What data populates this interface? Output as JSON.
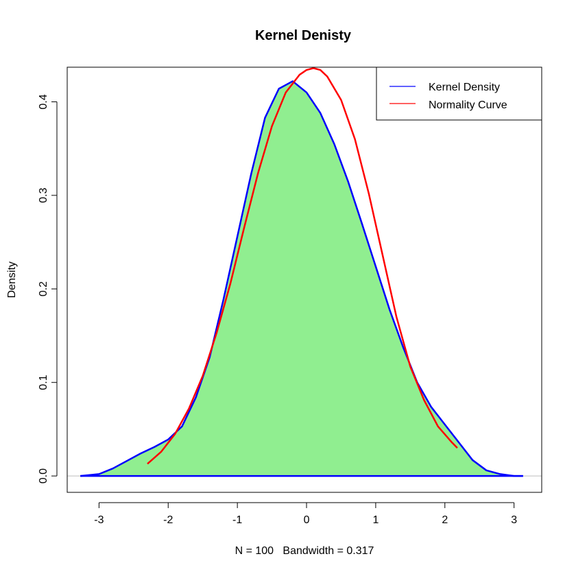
{
  "chart_data": {
    "type": "area",
    "title": "Kernel Denisty",
    "xlabel": "N = 100   Bandwidth = 0.317",
    "ylabel": "Density",
    "xlim": [
      -3.46,
      3.4
    ],
    "ylim": [
      -0.0175,
      0.437
    ],
    "x_ticks": [
      -3,
      -2,
      -1,
      0,
      1,
      2,
      3
    ],
    "x_tick_labels": [
      "-3",
      "-2",
      "-1",
      "0",
      "1",
      "2",
      "3"
    ],
    "y_ticks": [
      0.0,
      0.1,
      0.2,
      0.3,
      0.4
    ],
    "y_tick_labels": [
      "0.0",
      "0.1",
      "0.2",
      "0.3",
      "0.4"
    ],
    "grid": false,
    "baseline": 0,
    "legend_position": "top-right",
    "fill_color": "#90EE90",
    "series": [
      {
        "name": "Kernel Density",
        "color": "#0000FF",
        "x": [
          -3.27,
          -3.0,
          -2.8,
          -2.6,
          -2.4,
          -2.2,
          -2.0,
          -1.8,
          -1.6,
          -1.4,
          -1.2,
          -1.0,
          -0.8,
          -0.6,
          -0.4,
          -0.2,
          0.0,
          0.2,
          0.4,
          0.6,
          0.8,
          1.0,
          1.2,
          1.4,
          1.6,
          1.8,
          2.0,
          2.2,
          2.4,
          2.6,
          2.8,
          3.0,
          3.13
        ],
        "y": [
          0.0,
          0.002,
          0.008,
          0.016,
          0.024,
          0.031,
          0.039,
          0.053,
          0.084,
          0.127,
          0.189,
          0.256,
          0.323,
          0.383,
          0.414,
          0.422,
          0.41,
          0.388,
          0.355,
          0.315,
          0.27,
          0.224,
          0.178,
          0.137,
          0.1,
          0.074,
          0.055,
          0.036,
          0.017,
          0.006,
          0.002,
          0.0,
          0.0
        ]
      },
      {
        "name": "Normality Curve",
        "color": "#FF0000",
        "x": [
          -2.3,
          -2.1,
          -1.9,
          -1.7,
          -1.5,
          -1.3,
          -1.1,
          -0.9,
          -0.7,
          -0.5,
          -0.3,
          -0.1,
          0.0,
          0.1,
          0.2,
          0.3,
          0.5,
          0.7,
          0.9,
          1.1,
          1.3,
          1.5,
          1.7,
          1.9,
          2.1,
          2.18
        ],
        "y": [
          0.013,
          0.026,
          0.045,
          0.072,
          0.107,
          0.153,
          0.206,
          0.266,
          0.324,
          0.374,
          0.41,
          0.429,
          0.434,
          0.436,
          0.434,
          0.427,
          0.402,
          0.36,
          0.302,
          0.236,
          0.17,
          0.117,
          0.081,
          0.053,
          0.036,
          0.03
        ]
      }
    ]
  }
}
